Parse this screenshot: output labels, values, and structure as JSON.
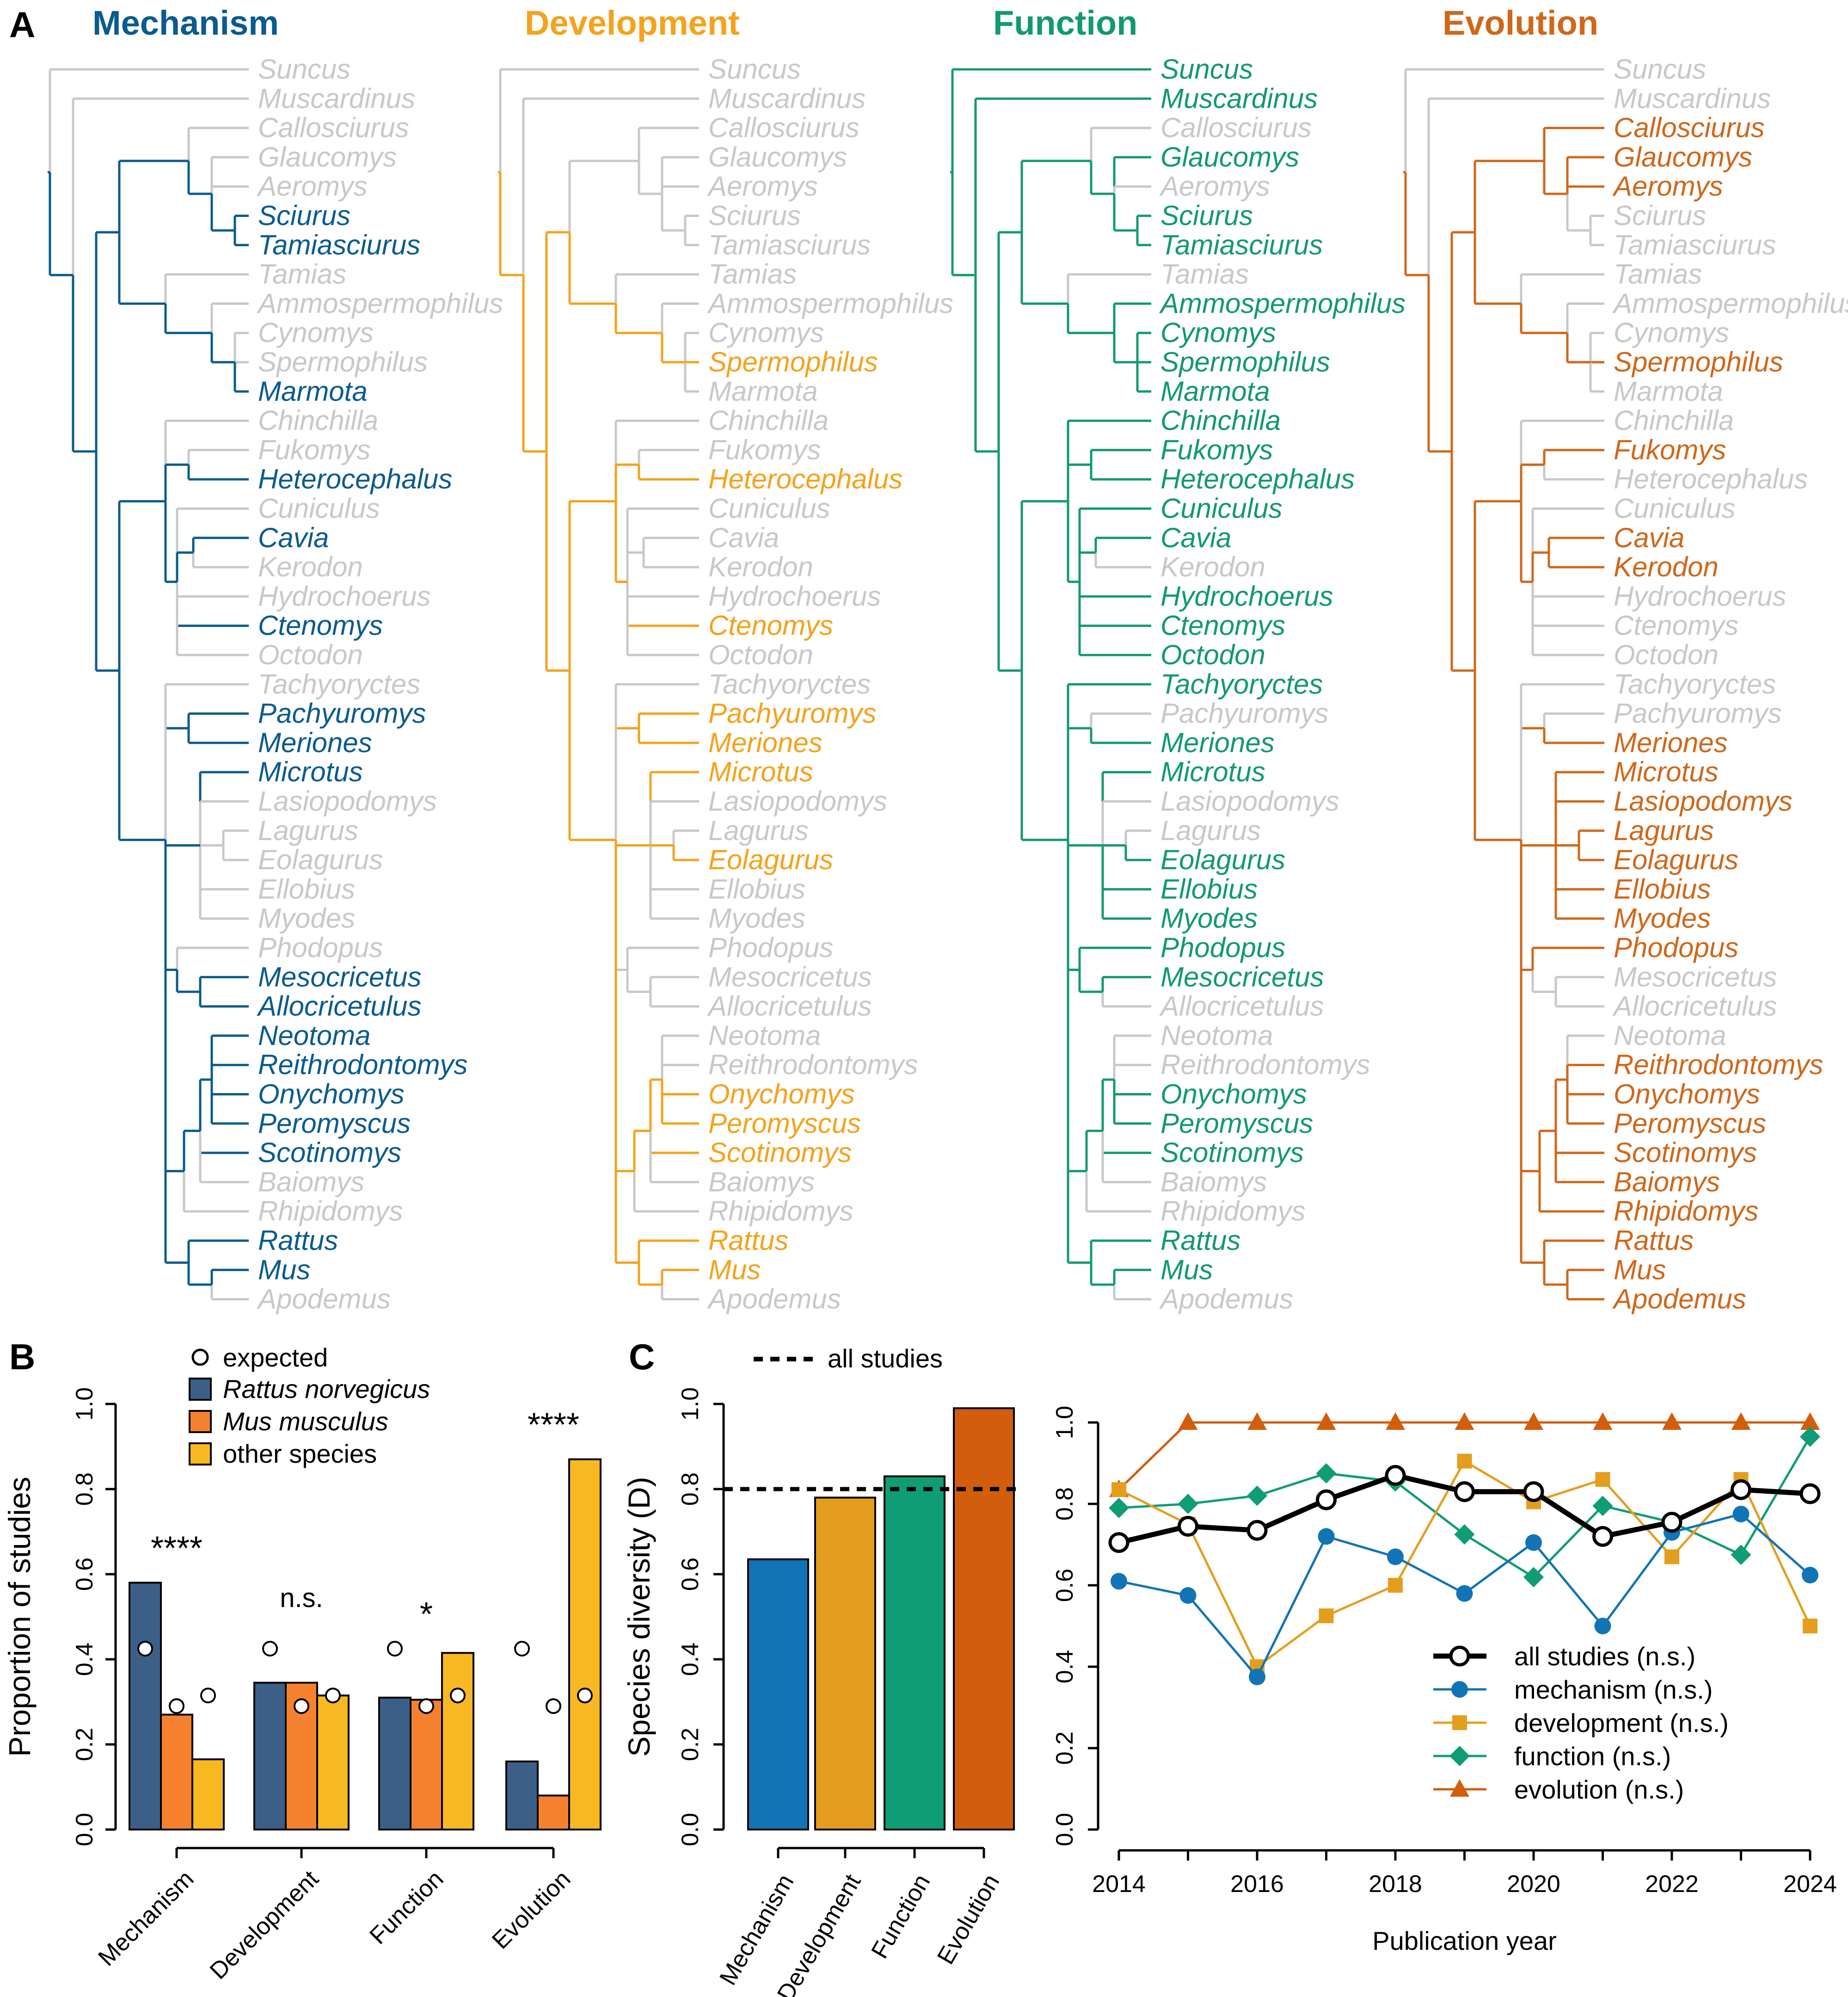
{
  "colors": {
    "mechanism": "#0a5b8e",
    "development": "#f5a21c",
    "function": "#129972",
    "evolution": "#d0671a",
    "gray": "#c8c8c8",
    "rattus": "#3c5f87",
    "mus": "#f5812f",
    "other": "#f7b822",
    "mech_bar": "#1174b5",
    "dev_bar": "#e49e1d",
    "fun_bar": "#0e9d74",
    "evo_bar": "#d25d0c"
  },
  "panelA": {
    "label": "A",
    "categories": [
      "Mechanism",
      "Development",
      "Function",
      "Evolution"
    ],
    "species": [
      "Suncus",
      "Muscardinus",
      "Callosciurus",
      "Glaucomys",
      "Aeromys",
      "Sciurus",
      "Tamiasciurus",
      "Tamias",
      "Ammospermophilus",
      "Cynomys",
      "Spermophilus",
      "Marmota",
      "Chinchilla",
      "Fukomys",
      "Heterocephalus",
      "Cuniculus",
      "Cavia",
      "Kerodon",
      "Hydrochoerus",
      "Ctenomys",
      "Octodon",
      "Tachyoryctes",
      "Pachyuromys",
      "Meriones",
      "Microtus",
      "Lasiopodomys",
      "Lagurus",
      "Eolagurus",
      "Ellobius",
      "Myodes",
      "Phodopus",
      "Mesocricetus",
      "Allocricetulus",
      "Neotoma",
      "Reithrodontomys",
      "Onychomys",
      "Peromyscus",
      "Scotinomys",
      "Baiomys",
      "Rhipidomys",
      "Rattus",
      "Mus",
      "Apodemus"
    ],
    "studied": {
      "Mechanism": [
        "Sciurus",
        "Tamiasciurus",
        "Marmota",
        "Heterocephalus",
        "Cavia",
        "Ctenomys",
        "Pachyuromys",
        "Meriones",
        "Microtus",
        "Mesocricetus",
        "Allocricetulus",
        "Neotoma",
        "Reithrodontomys",
        "Onychomys",
        "Peromyscus",
        "Scotinomys",
        "Rattus",
        "Mus"
      ],
      "Development": [
        "Spermophilus",
        "Heterocephalus",
        "Ctenomys",
        "Pachyuromys",
        "Meriones",
        "Microtus",
        "Eolagurus",
        "Onychomys",
        "Peromyscus",
        "Scotinomys",
        "Rattus",
        "Mus"
      ],
      "Function": [
        "Suncus",
        "Muscardinus",
        "Glaucomys",
        "Sciurus",
        "Tamiasciurus",
        "Ammospermophilus",
        "Cynomys",
        "Spermophilus",
        "Marmota",
        "Chinchilla",
        "Fukomys",
        "Heterocephalus",
        "Cuniculus",
        "Cavia",
        "Hydrochoerus",
        "Ctenomys",
        "Octodon",
        "Tachyoryctes",
        "Meriones",
        "Microtus",
        "Eolagurus",
        "Ellobius",
        "Myodes",
        "Phodopus",
        "Mesocricetus",
        "Onychomys",
        "Peromyscus",
        "Scotinomys",
        "Rattus",
        "Mus"
      ],
      "Evolution": [
        "Callosciurus",
        "Glaucomys",
        "Aeromys",
        "Spermophilus",
        "Fukomys",
        "Cavia",
        "Kerodon",
        "Meriones",
        "Microtus",
        "Lasiopodomys",
        "Lagurus",
        "Eolagurus",
        "Ellobius",
        "Myodes",
        "Phodopus",
        "Reithrodontomys",
        "Onychomys",
        "Peromyscus",
        "Scotinomys",
        "Baiomys",
        "Rhipidomys",
        "Rattus",
        "Mus",
        "Apodemus"
      ]
    }
  },
  "panelB": {
    "label": "B",
    "legend": {
      "expected": "expected",
      "rattus": "Rattus norvegicus",
      "mus": "Mus musculus",
      "other": "other species"
    }
  },
  "panelC": {
    "label": "C",
    "legend_all": "all studies",
    "xlabel": "Publication year",
    "line_legend": [
      "all studies (n.s.)",
      "mechanism (n.s.)",
      "development (n.s.)",
      "function (n.s.)",
      "evolution (n.s.)"
    ]
  },
  "chart_data": [
    {
      "type": "bar",
      "title": "",
      "ylabel": "Proportion of studies",
      "ylim": [
        0,
        1
      ],
      "yticks": [
        "0.0",
        "0.2",
        "0.4",
        "0.6",
        "0.8",
        "1.0"
      ],
      "categories": [
        "Mechanism",
        "Development",
        "Function",
        "Evolution"
      ],
      "series": [
        {
          "name": "Rattus norvegicus",
          "values": [
            0.58,
            0.345,
            0.31,
            0.16
          ]
        },
        {
          "name": "Mus musculus",
          "values": [
            0.27,
            0.345,
            0.305,
            0.08
          ]
        },
        {
          "name": "other species",
          "values": [
            0.165,
            0.315,
            0.415,
            0.87
          ]
        }
      ],
      "expected": [
        0.425,
        0.29,
        0.315
      ],
      "significance": [
        "****",
        "n.s.",
        "*",
        "****"
      ]
    },
    {
      "type": "bar",
      "title": "",
      "ylabel": "Species diversity (D)",
      "ylim": [
        0,
        1
      ],
      "yticks": [
        "0.0",
        "0.2",
        "0.4",
        "0.6",
        "0.8",
        "1.0"
      ],
      "categories": [
        "Mechanism",
        "Development",
        "Function",
        "Evolution"
      ],
      "values": [
        0.635,
        0.78,
        0.83,
        0.99
      ],
      "reference_line": {
        "name": "all studies",
        "value": 0.8
      }
    },
    {
      "type": "line",
      "title": "",
      "xlabel": "Publication year",
      "ylim": [
        0,
        1
      ],
      "xlim": [
        2014,
        2024
      ],
      "yticks": [
        "0.0",
        "0.2",
        "0.4",
        "0.6",
        "0.8",
        "1.0"
      ],
      "xticks": [
        "2014",
        "2016",
        "2018",
        "2020",
        "2022",
        "2024"
      ],
      "x": [
        2014,
        2015,
        2016,
        2017,
        2018,
        2019,
        2020,
        2021,
        2022,
        2023,
        2024
      ],
      "series": [
        {
          "name": "all studies (n.s.)",
          "values": [
            0.705,
            0.745,
            0.735,
            0.81,
            0.87,
            0.83,
            0.83,
            0.72,
            0.755,
            0.835,
            0.825
          ]
        },
        {
          "name": "mechanism (n.s.)",
          "values": [
            0.61,
            0.575,
            0.375,
            0.72,
            0.67,
            0.58,
            0.705,
            0.5,
            0.73,
            0.775,
            0.625
          ]
        },
        {
          "name": "development (n.s.)",
          "values": [
            0.835,
            0.75,
            0.4,
            0.525,
            0.6,
            0.905,
            0.805,
            0.86,
            0.67,
            0.86,
            0.5
          ]
        },
        {
          "name": "function (n.s.)",
          "values": [
            0.79,
            0.8,
            0.82,
            0.875,
            0.855,
            0.725,
            0.62,
            0.795,
            0.755,
            0.675,
            0.965
          ]
        },
        {
          "name": "evolution (n.s.)",
          "values": [
            0.835,
            1,
            1,
            1,
            1,
            1,
            1,
            1,
            1,
            1,
            1
          ]
        }
      ]
    }
  ]
}
